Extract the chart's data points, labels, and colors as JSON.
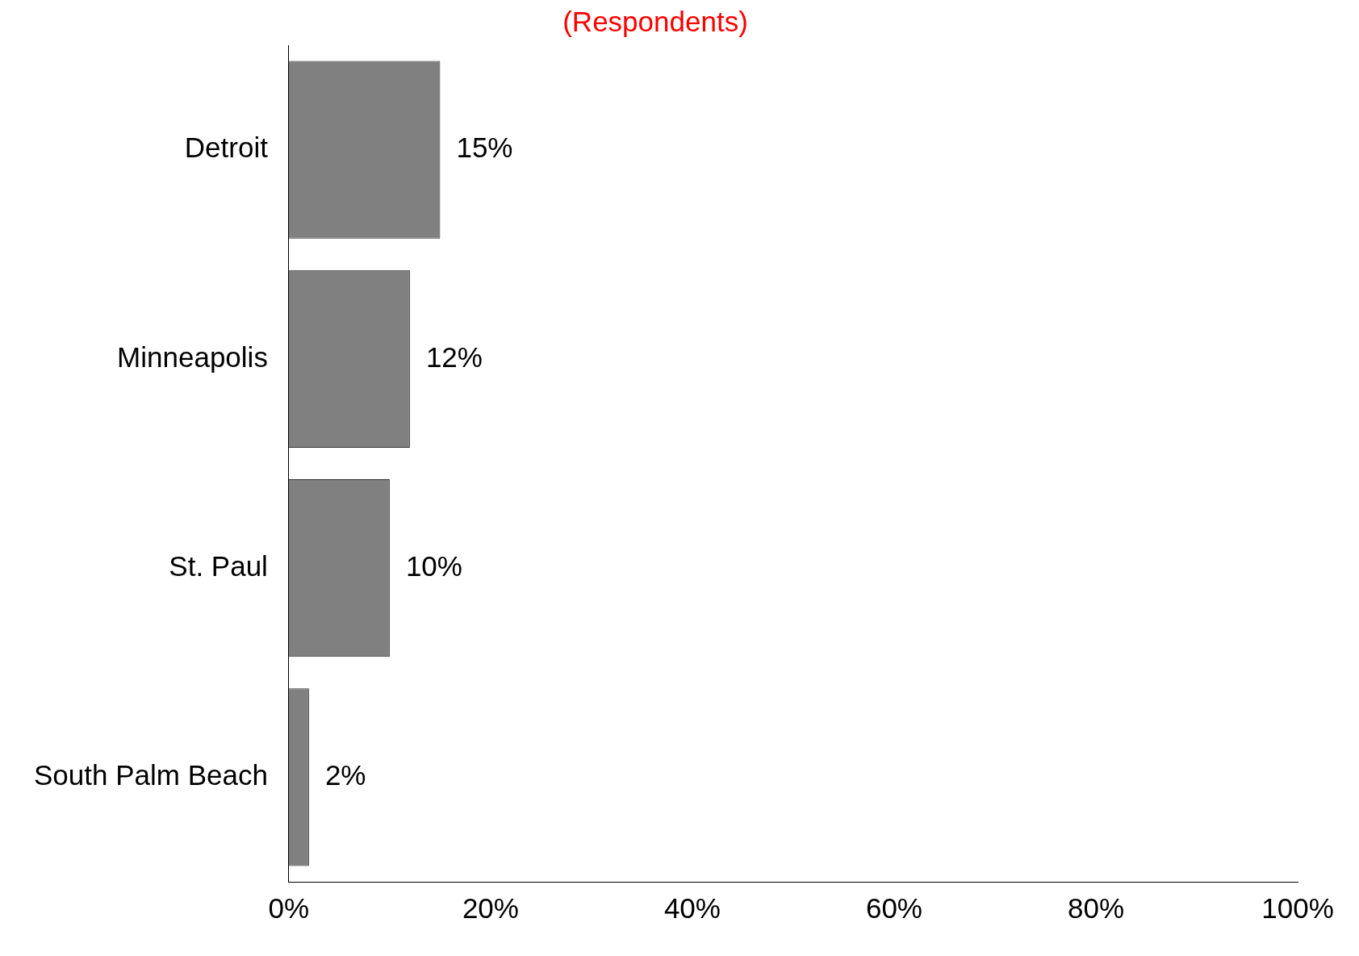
{
  "chart_data": {
    "type": "bar",
    "orientation": "horizontal",
    "subtitle": "(Respondents)",
    "categories": [
      "Detroit",
      "Minneapolis",
      "St. Paul",
      "South Palm Beach"
    ],
    "values": [
      15,
      12,
      10,
      2
    ],
    "color": "#808080",
    "value_labels": [
      "15%",
      "12%",
      "10%",
      "2%"
    ],
    "xlim": [
      0,
      100
    ],
    "xticks": [
      {
        "value": 0,
        "label": "0%"
      },
      {
        "value": 20,
        "label": "20%"
      },
      {
        "value": 40,
        "label": "40%"
      },
      {
        "value": 60,
        "label": "60%"
      },
      {
        "value": 80,
        "label": "80%"
      },
      {
        "value": 100,
        "label": "100%"
      }
    ],
    "grid": false,
    "legend": false
  }
}
